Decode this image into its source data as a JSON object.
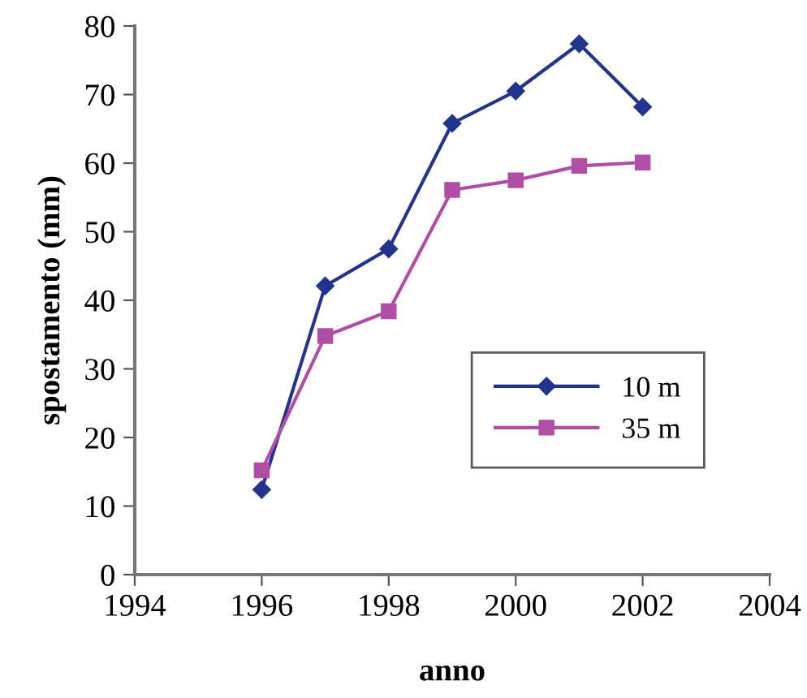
{
  "chart_data": {
    "type": "line",
    "xlabel": "anno",
    "ylabel": "spostamento (mm)",
    "x": [
      1996,
      1997,
      1998,
      1999,
      2000,
      2001,
      2002
    ],
    "series": [
      {
        "name": "10 m",
        "color": "#23348f",
        "marker": "diamond",
        "values": [
          12.4,
          42.1,
          47.5,
          65.8,
          70.5,
          77.4,
          68.2
        ]
      },
      {
        "name": "35 m",
        "color": "#b04ea6",
        "marker": "square",
        "values": [
          15.2,
          34.8,
          38.4,
          56.1,
          57.5,
          59.6,
          60.1
        ]
      }
    ],
    "xlim": [
      1994,
      2004
    ],
    "xticks": [
      1994,
      1996,
      1998,
      2000,
      2002,
      2004
    ],
    "ylim": [
      0,
      80
    ],
    "yticks": [
      0,
      10,
      20,
      30,
      40,
      50,
      60,
      70,
      80
    ],
    "grid": false,
    "legend": "right",
    "line_style": "solid"
  }
}
